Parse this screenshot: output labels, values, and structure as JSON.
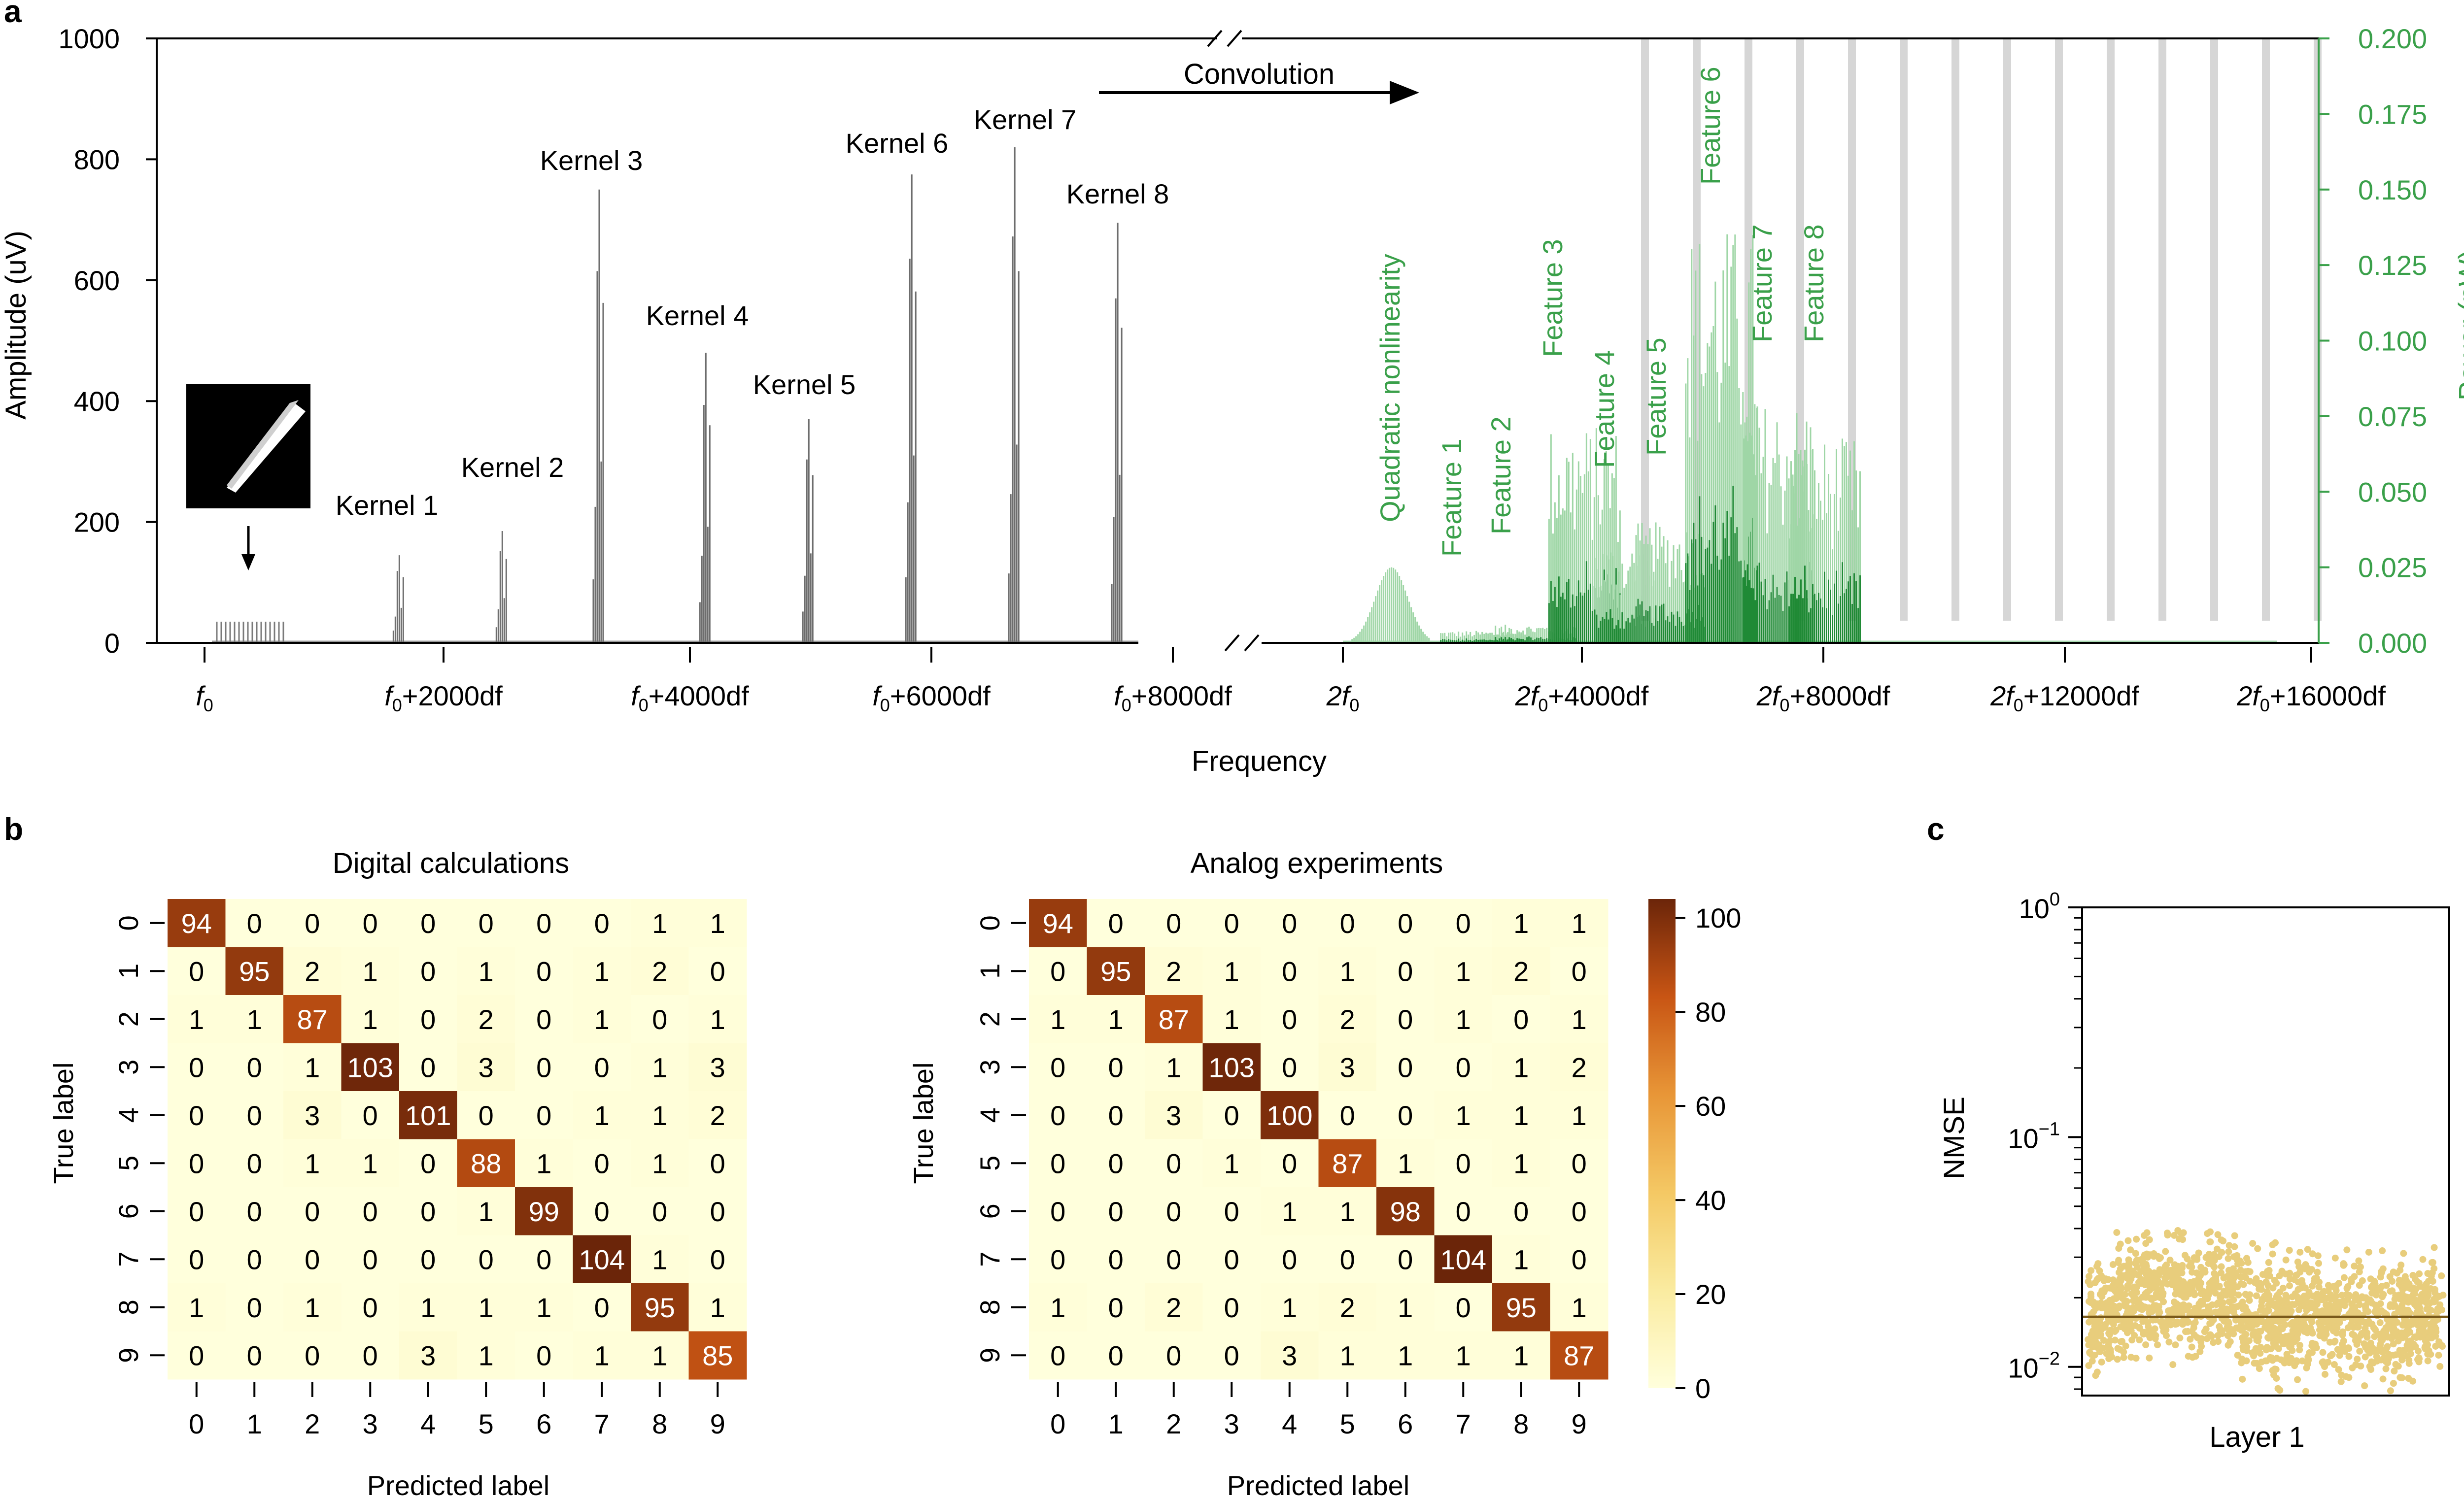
{
  "panel_labels": {
    "a": "a",
    "b": "b",
    "c": "c"
  },
  "colors": {
    "gray": "#7a7a7a",
    "green": "#3aa04a",
    "dark_green": "#1f8a35",
    "cell_low": "#ffffdc",
    "cell_high": "#6b2509",
    "nmse_points": "#e8cd7c",
    "nmse_line": "#7a5a1a"
  },
  "chart_data": [
    {
      "id": "a",
      "type": "bar",
      "xlabel": "Frequency",
      "ylabel": "Amplitude (uV)",
      "y2label": "Power (pW)",
      "ylim": [
        0,
        1000
      ],
      "y2lim": [
        0,
        0.2
      ],
      "yticks": [
        "0",
        "200",
        "400",
        "600",
        "800",
        "1000"
      ],
      "y2ticks": [
        "0.000",
        "0.025",
        "0.050",
        "0.075",
        "0.100",
        "0.125",
        "0.150",
        "0.175",
        "0.200"
      ],
      "xticks_left": [
        {
          "f": "f",
          "sub": "0",
          "rest": ""
        },
        {
          "f": "f",
          "sub": "0",
          "rest": "+2000df"
        },
        {
          "f": "f",
          "sub": "0",
          "rest": "+4000df"
        },
        {
          "f": "f",
          "sub": "0",
          "rest": "+6000df"
        },
        {
          "f": "f",
          "sub": "0",
          "rest": "+8000df"
        }
      ],
      "xticks_right": [
        {
          "f": "2f",
          "sub": "0",
          "rest": ""
        },
        {
          "f": "2f",
          "sub": "0",
          "rest": "+4000df"
        },
        {
          "f": "2f",
          "sub": "0",
          "rest": "+8000df"
        },
        {
          "f": "2f",
          "sub": "0",
          "rest": "+12000df"
        },
        {
          "f": "2f",
          "sub": "0",
          "rest": "+16000df"
        }
      ],
      "arrow_label": "Convolution",
      "input_amplitude": 35,
      "kernels": [
        {
          "name": "Kernel 1",
          "offset": 1600,
          "peak": 145
        },
        {
          "name": "Kernel 2",
          "offset": 2450,
          "peak": 185
        },
        {
          "name": "Kernel 3",
          "offset": 3250,
          "peak": 750
        },
        {
          "name": "Kernel 4",
          "offset": 4130,
          "peak": 480
        },
        {
          "name": "Kernel 5",
          "offset": 4980,
          "peak": 370
        },
        {
          "name": "Kernel 6",
          "offset": 5830,
          "peak": 775
        },
        {
          "name": "Kernel 7",
          "offset": 6680,
          "peak": 820
        },
        {
          "name": "Kernel 8",
          "offset": 7530,
          "peak": 695
        }
      ],
      "features": [
        {
          "name": "Quadratic nonlinearity",
          "center": 800,
          "peak": 0.025
        },
        {
          "name": "Feature 1",
          "center": 2300,
          "peak": 0.004
        },
        {
          "name": "Feature 2",
          "center": 3200,
          "peak": 0.006
        },
        {
          "name": "Feature 3",
          "center": 4000,
          "peak": 0.072
        },
        {
          "name": "Feature 4",
          "center": 4750,
          "peak": 0.033
        },
        {
          "name": "Feature 5",
          "center": 5400,
          "peak": 0.04
        },
        {
          "name": "Feature 6",
          "center": 6250,
          "peak": 0.138
        },
        {
          "name": "Feature 7",
          "center": 7200,
          "peak": 0.08
        },
        {
          "name": "Feature 8",
          "center": 7950,
          "peak": 0.068
        }
      ]
    },
    {
      "id": "b1",
      "type": "heatmap",
      "title": "Digital calculations",
      "xlabel": "Predicted label",
      "ylabel": "True label",
      "labels": [
        "0",
        "1",
        "2",
        "3",
        "4",
        "5",
        "6",
        "7",
        "8",
        "9"
      ],
      "matrix": [
        [
          94,
          0,
          0,
          0,
          0,
          0,
          0,
          0,
          1,
          1
        ],
        [
          0,
          95,
          2,
          1,
          0,
          1,
          0,
          1,
          2,
          0
        ],
        [
          1,
          1,
          87,
          1,
          0,
          2,
          0,
          1,
          0,
          1
        ],
        [
          0,
          0,
          1,
          103,
          0,
          3,
          0,
          0,
          1,
          3
        ],
        [
          0,
          0,
          3,
          0,
          101,
          0,
          0,
          1,
          1,
          2
        ],
        [
          0,
          0,
          1,
          1,
          0,
          88,
          1,
          0,
          1,
          0
        ],
        [
          0,
          0,
          0,
          0,
          0,
          1,
          99,
          0,
          0,
          0
        ],
        [
          0,
          0,
          0,
          0,
          0,
          0,
          0,
          104,
          1,
          0
        ],
        [
          1,
          0,
          1,
          0,
          1,
          1,
          1,
          0,
          95,
          1
        ],
        [
          0,
          0,
          0,
          0,
          3,
          1,
          0,
          1,
          1,
          85
        ]
      ]
    },
    {
      "id": "b2",
      "type": "heatmap",
      "title": "Analog experiments",
      "xlabel": "Predicted label",
      "ylabel": "True label",
      "labels": [
        "0",
        "1",
        "2",
        "3",
        "4",
        "5",
        "6",
        "7",
        "8",
        "9"
      ],
      "matrix": [
        [
          94,
          0,
          0,
          0,
          0,
          0,
          0,
          0,
          1,
          1
        ],
        [
          0,
          95,
          2,
          1,
          0,
          1,
          0,
          1,
          2,
          0
        ],
        [
          1,
          1,
          87,
          1,
          0,
          2,
          0,
          1,
          0,
          1
        ],
        [
          0,
          0,
          1,
          103,
          0,
          3,
          0,
          0,
          1,
          2
        ],
        [
          0,
          0,
          3,
          0,
          100,
          0,
          0,
          1,
          1,
          1
        ],
        [
          0,
          0,
          0,
          1,
          0,
          87,
          1,
          0,
          1,
          0
        ],
        [
          0,
          0,
          0,
          0,
          1,
          1,
          98,
          0,
          0,
          0
        ],
        [
          0,
          0,
          0,
          0,
          0,
          0,
          0,
          104,
          1,
          0
        ],
        [
          1,
          0,
          2,
          0,
          1,
          2,
          1,
          0,
          95,
          1
        ],
        [
          0,
          0,
          0,
          0,
          3,
          1,
          1,
          1,
          1,
          87
        ]
      ],
      "colorbar": {
        "min": 0,
        "max": 104,
        "ticks": [
          "0",
          "20",
          "40",
          "60",
          "80",
          "100"
        ]
      }
    },
    {
      "id": "c",
      "type": "scatter",
      "ylabel": "NMSE",
      "xlabel": "Layer 1",
      "scale": "log",
      "ylim": [
        0.0075,
        1
      ],
      "yticks": [
        {
          "base": "10",
          "exp": "0"
        },
        {
          "base": "10",
          "exp": "−1"
        },
        {
          "base": "10",
          "exp": "−2"
        }
      ],
      "mean": 0.0165,
      "typical_range": [
        0.01,
        0.028
      ]
    }
  ]
}
